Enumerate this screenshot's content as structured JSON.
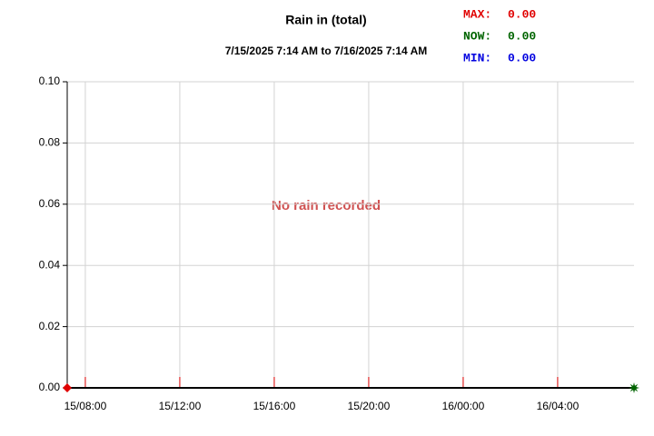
{
  "chart_data": {
    "type": "line",
    "title": "Rain in (total)",
    "subtitle": "7/15/2025 7:14 AM to 7/16/2025 7:14 AM",
    "annotation": "No rain recorded",
    "stats": [
      {
        "name": "MAX:",
        "value": "0.00",
        "color": "#e00000"
      },
      {
        "name": "NOW:",
        "value": "0.00",
        "color": "#006400"
      },
      {
        "name": "MIN:",
        "value": "0.00",
        "color": "#0000e0"
      }
    ],
    "x": [
      "2025-07-15T07:14",
      "2025-07-16T07:14"
    ],
    "series": [
      {
        "values": [
          0,
          0
        ],
        "color": "#000000"
      }
    ],
    "max_point": {
      "x": "2025-07-15T07:14",
      "value": 0,
      "color": "#e00000"
    },
    "now_point": {
      "x": "2025-07-16T07:14",
      "value": 0,
      "color": "#006400"
    },
    "xlim": [
      "2025-07-15T07:14",
      "2025-07-16T07:14"
    ],
    "xticks": [
      {
        "value": "2025-07-15T08:00",
        "label": "15/08:00"
      },
      {
        "value": "2025-07-15T12:00",
        "label": "15/12:00"
      },
      {
        "value": "2025-07-15T16:00",
        "label": "15/16:00"
      },
      {
        "value": "2025-07-15T20:00",
        "label": "15/20:00"
      },
      {
        "value": "2025-07-16T00:00",
        "label": "16/00:00"
      },
      {
        "value": "2025-07-16T04:00",
        "label": "16/04:00"
      }
    ],
    "ylim": [
      0,
      0.1
    ],
    "yticks": [
      {
        "value": 0,
        "label": "0.00"
      },
      {
        "value": 0.02,
        "label": "0.02"
      },
      {
        "value": 0.04,
        "label": "0.04"
      },
      {
        "value": 0.06,
        "label": "0.06"
      },
      {
        "value": 0.08,
        "label": "0.08"
      },
      {
        "value": 0.1,
        "label": "0.10"
      }
    ],
    "grid": true
  }
}
